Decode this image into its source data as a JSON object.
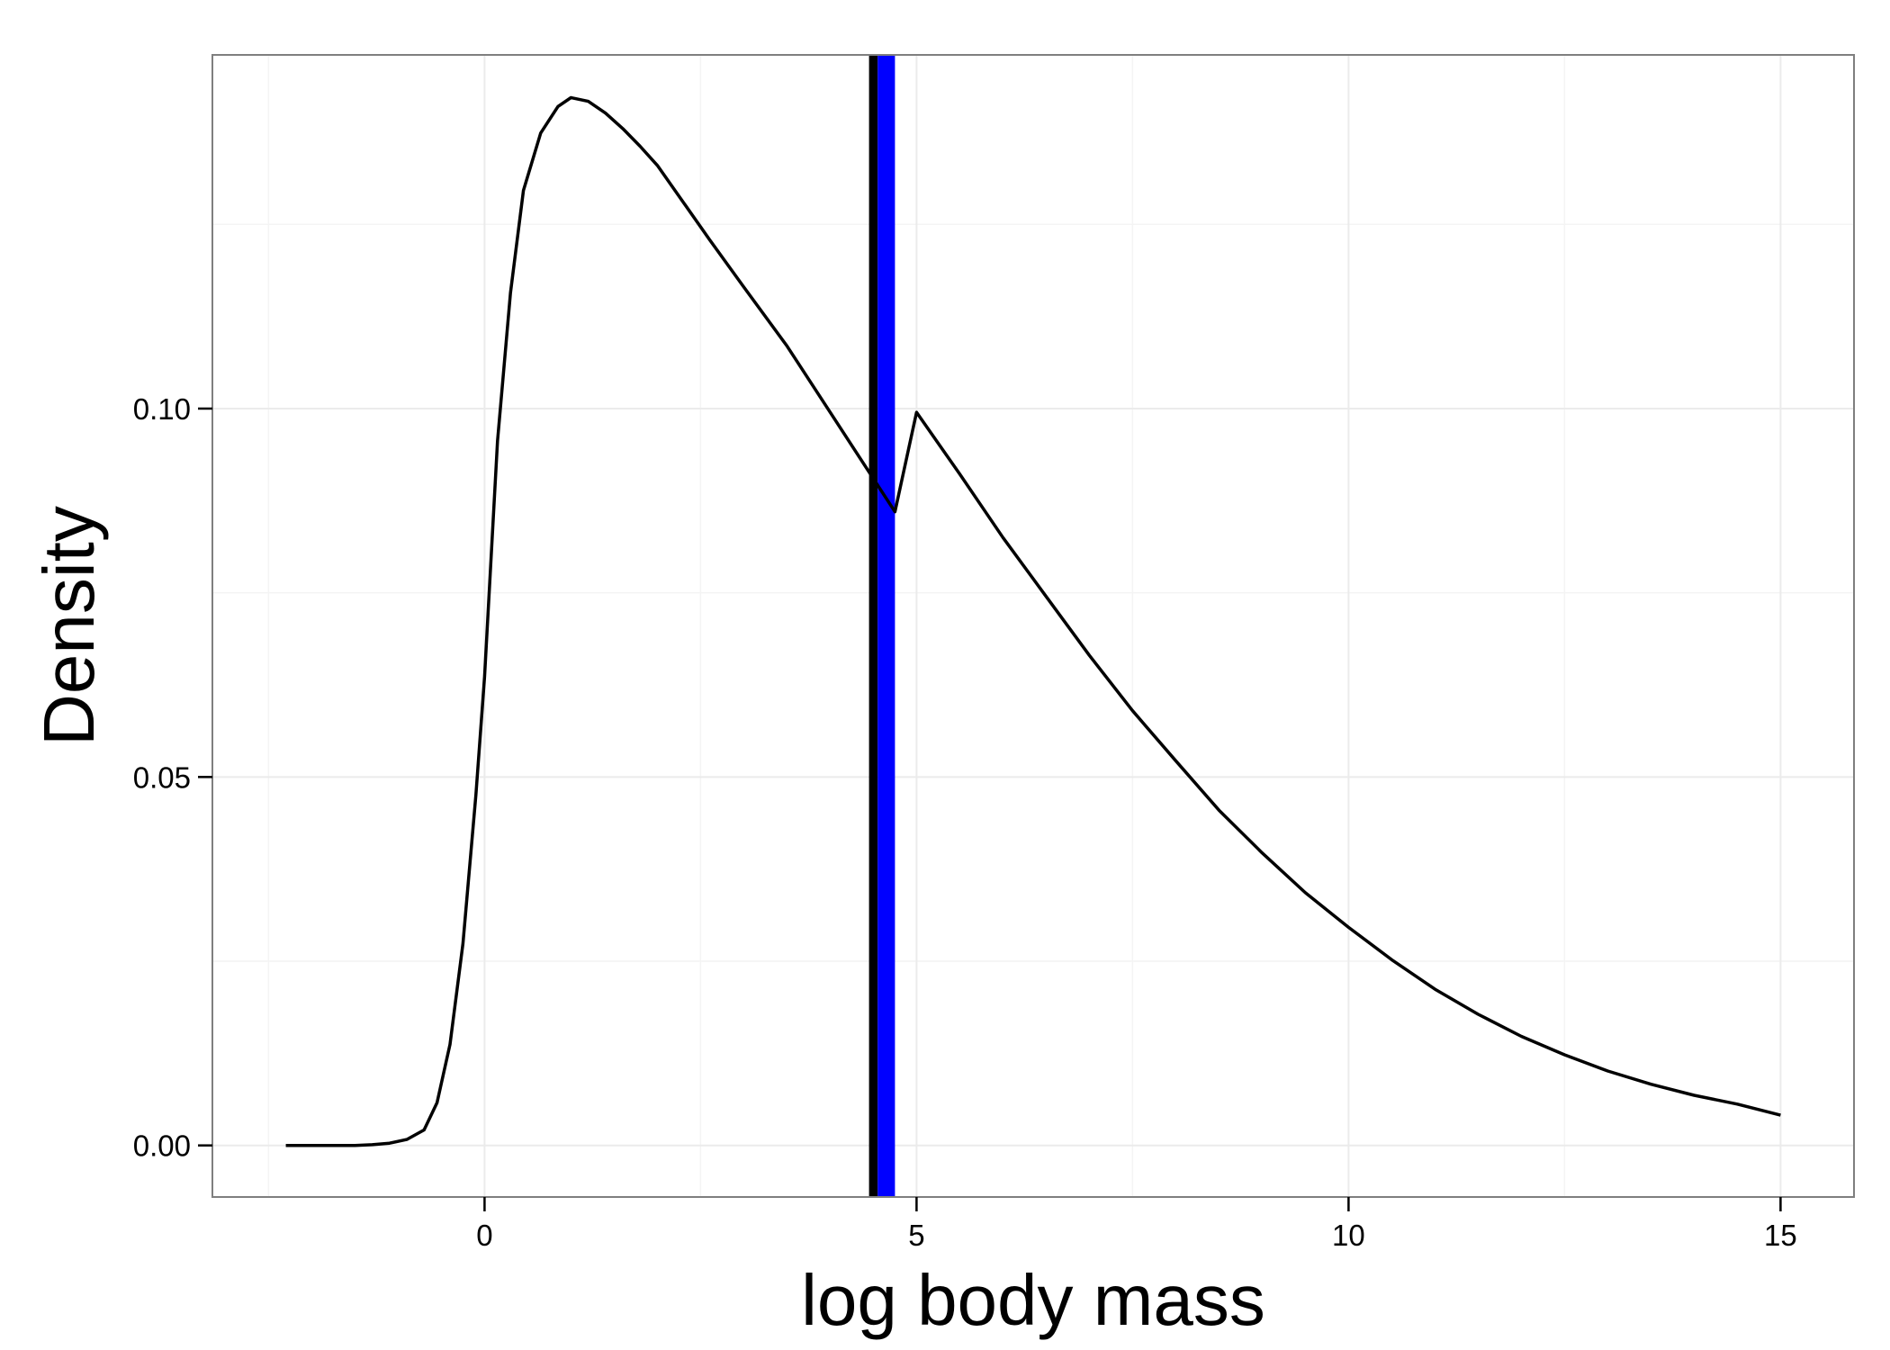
{
  "chart_data": {
    "type": "line",
    "title": "",
    "xlabel": "log body mass",
    "ylabel": "Density",
    "xlim": [
      -3.15,
      15.85
    ],
    "ylim": [
      -0.007,
      0.148
    ],
    "x_ticks": [
      0,
      5,
      10,
      15
    ],
    "x_tick_labels": [
      "0",
      "5",
      "10",
      "15"
    ],
    "y_ticks": [
      0.0,
      0.05,
      0.1
    ],
    "y_tick_labels": [
      "0.00",
      "0.05",
      "0.10"
    ],
    "grid": true,
    "legend": "none",
    "colors": {
      "panel_border": "#7f7f7f",
      "grid_major": "#ebebeb",
      "grid_minor": "#f4f4f4",
      "curve": "#000000",
      "vline_dark": "#000000",
      "vline_band": "#0000ff"
    },
    "series": [
      {
        "x": [
          -2.3,
          -2.0,
          -1.7,
          -1.5,
          -1.3,
          -1.1,
          -0.9,
          -0.7,
          -0.55,
          -0.4,
          -0.25,
          -0.1,
          0.0,
          0.15,
          0.3,
          0.45,
          0.65,
          0.85,
          1.0,
          1.2,
          1.4,
          1.6,
          1.8,
          2.0,
          2.3,
          2.6,
          3.0,
          3.5,
          4.0,
          4.5,
          4.75,
          5.0,
          5.5,
          6.0,
          6.5,
          7.0,
          7.5,
          8.0,
          8.5,
          9.0,
          9.5,
          10.0,
          10.5,
          11.0,
          11.5,
          12.0,
          12.5,
          13.0,
          13.5,
          14.0,
          14.5,
          15.0
        ],
        "y": [
          0.0,
          0.0,
          0.0,
          0.0,
          0.0001,
          0.0003,
          0.0008,
          0.0021,
          0.0058,
          0.0137,
          0.0274,
          0.0476,
          0.0636,
          0.0956,
          0.1157,
          0.1296,
          0.1374,
          0.141,
          0.1422,
          0.1417,
          0.1401,
          0.138,
          0.1356,
          0.133,
          0.128,
          0.123,
          0.1165,
          0.1085,
          0.0995,
          0.0905,
          0.086,
          0.0995,
          0.0911,
          0.0825,
          0.0745,
          0.0665,
          0.059,
          0.0522,
          0.0455,
          0.0397,
          0.0343,
          0.0296,
          0.0252,
          0.0212,
          0.0178,
          0.0148,
          0.0123,
          0.0101,
          0.0083,
          0.0068,
          0.0056,
          0.0041
        ]
      }
    ],
    "vlines": [
      {
        "x": 4.5,
        "style": "dark",
        "width": 0.1
      },
      {
        "x": 4.65,
        "style": "band",
        "width": 0.2
      }
    ]
  }
}
